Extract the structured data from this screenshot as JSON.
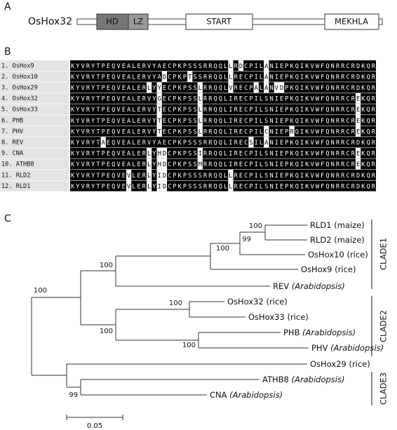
{
  "panels": {
    "a": "A",
    "b": "B",
    "c": "C"
  },
  "domain_diagram": {
    "gene": "OsHox32",
    "domains": [
      "HD",
      "LZ",
      "START",
      "MEKHLA"
    ]
  },
  "alignment": {
    "rows": [
      {
        "label": "1. OsHox9",
        "sequence": "KYVRYTPEQVEALERVYAECPKPSSSRRQQLLRDCPILANIEPKQIKVWFQNRRCRDKQR"
      },
      {
        "label": "2. OsHox10",
        "sequence": "KYVRYTPEQVEALERVYADCPKPTSSRRQQLLRECPILANIEPKQIKVWFQNRRCRDKQR"
      },
      {
        "label": "3. OsHox29",
        "sequence": "KYVRYTPEQVEALERLYYECPKPSSLRRQQLVRECPALANVDPKQIKVWFQNRRCRDKQR"
      },
      {
        "label": "4. OsHox32",
        "sequence": "KYVRYTPEQVEALERVYGECPKPSSLRRQQLIRECPILSNIEPKQIKVWFQNRRCREKQR"
      },
      {
        "label": "5. OsHox33",
        "sequence": "KYVRYTPEQVEALERVYTECPKPSSLRRQQLIRECPILSNIEPKQIKVWFQNRRCREKQR"
      },
      {
        "label": "6. PHB",
        "sequence": "KYVRYTPEQVEALERVYTECPKPSSLRRQQLIRECPILSNIEPKQIKVWFQNRRCREKQR"
      },
      {
        "label": "7. PHV",
        "sequence": "KYVRYTPEQVEALERVYTECPKPSSLRRQQLIRECPILCNIEPRQIKVWFQNRRCREKQR"
      },
      {
        "label": "8. REV",
        "sequence": "KYVRYTAEQVEALERVYAECPKPSSSRRQQLIRECSILANIEPKQIKVWFQNRRCRDKQR"
      },
      {
        "label": "9. CNA",
        "sequence": "KYVRYTPEQVEALERLYHDCPKPSSIRRQQLIRECPILSNIEPKQIKVWFQNRRCREKQR"
      },
      {
        "label": "10. ATHB8",
        "sequence": "KYVRYTPEQVEALERLYHDCPKPSSMRRQQLIRECPILSNIEPKQIKVWFQNRRCREKQR"
      },
      {
        "label": "11. RLD2",
        "sequence": "KYVRYTPEQVEVLERLYIDCPKPSSSRRQQLLRECPILSNIEPKQIKVWFQNRRCRDKQR"
      },
      {
        "label": "12. RLD1",
        "sequence": "KYVRYTPEQVEVLERLYIDCPKPSSSRRQQLLRECPILSNIEPKQIKVWFQNRRCRDKQR"
      }
    ]
  },
  "tree": {
    "leaves": [
      {
        "name": "RLD1",
        "origin": "(maize)"
      },
      {
        "name": "RLD2",
        "origin": "(maize)"
      },
      {
        "name": "OsHox10",
        "origin": "(rice)"
      },
      {
        "name": "OsHox9",
        "origin": "(rice)"
      },
      {
        "name": "REV",
        "origin": "(Arabidopsis)"
      },
      {
        "name": "OsHox32",
        "origin": "(rice)"
      },
      {
        "name": "OsHox33",
        "origin": "(rice)"
      },
      {
        "name": "PHB",
        "origin": "(Arabidopsis)"
      },
      {
        "name": "PHV",
        "origin": "(Arabidopsis)"
      },
      {
        "name": "OsHox29",
        "origin": "(rice)"
      },
      {
        "name": "ATHB8",
        "origin": "(Arabidopsis)"
      },
      {
        "name": "CNA",
        "origin": "(Arabidopsis)"
      }
    ],
    "bootstrap": [
      "100",
      "99",
      "100",
      "100",
      "100",
      "100",
      "100",
      "100",
      "99"
    ],
    "clades": [
      "CLADE1",
      "CLADE2",
      "CLADE3"
    ],
    "scale": "0.05"
  }
}
